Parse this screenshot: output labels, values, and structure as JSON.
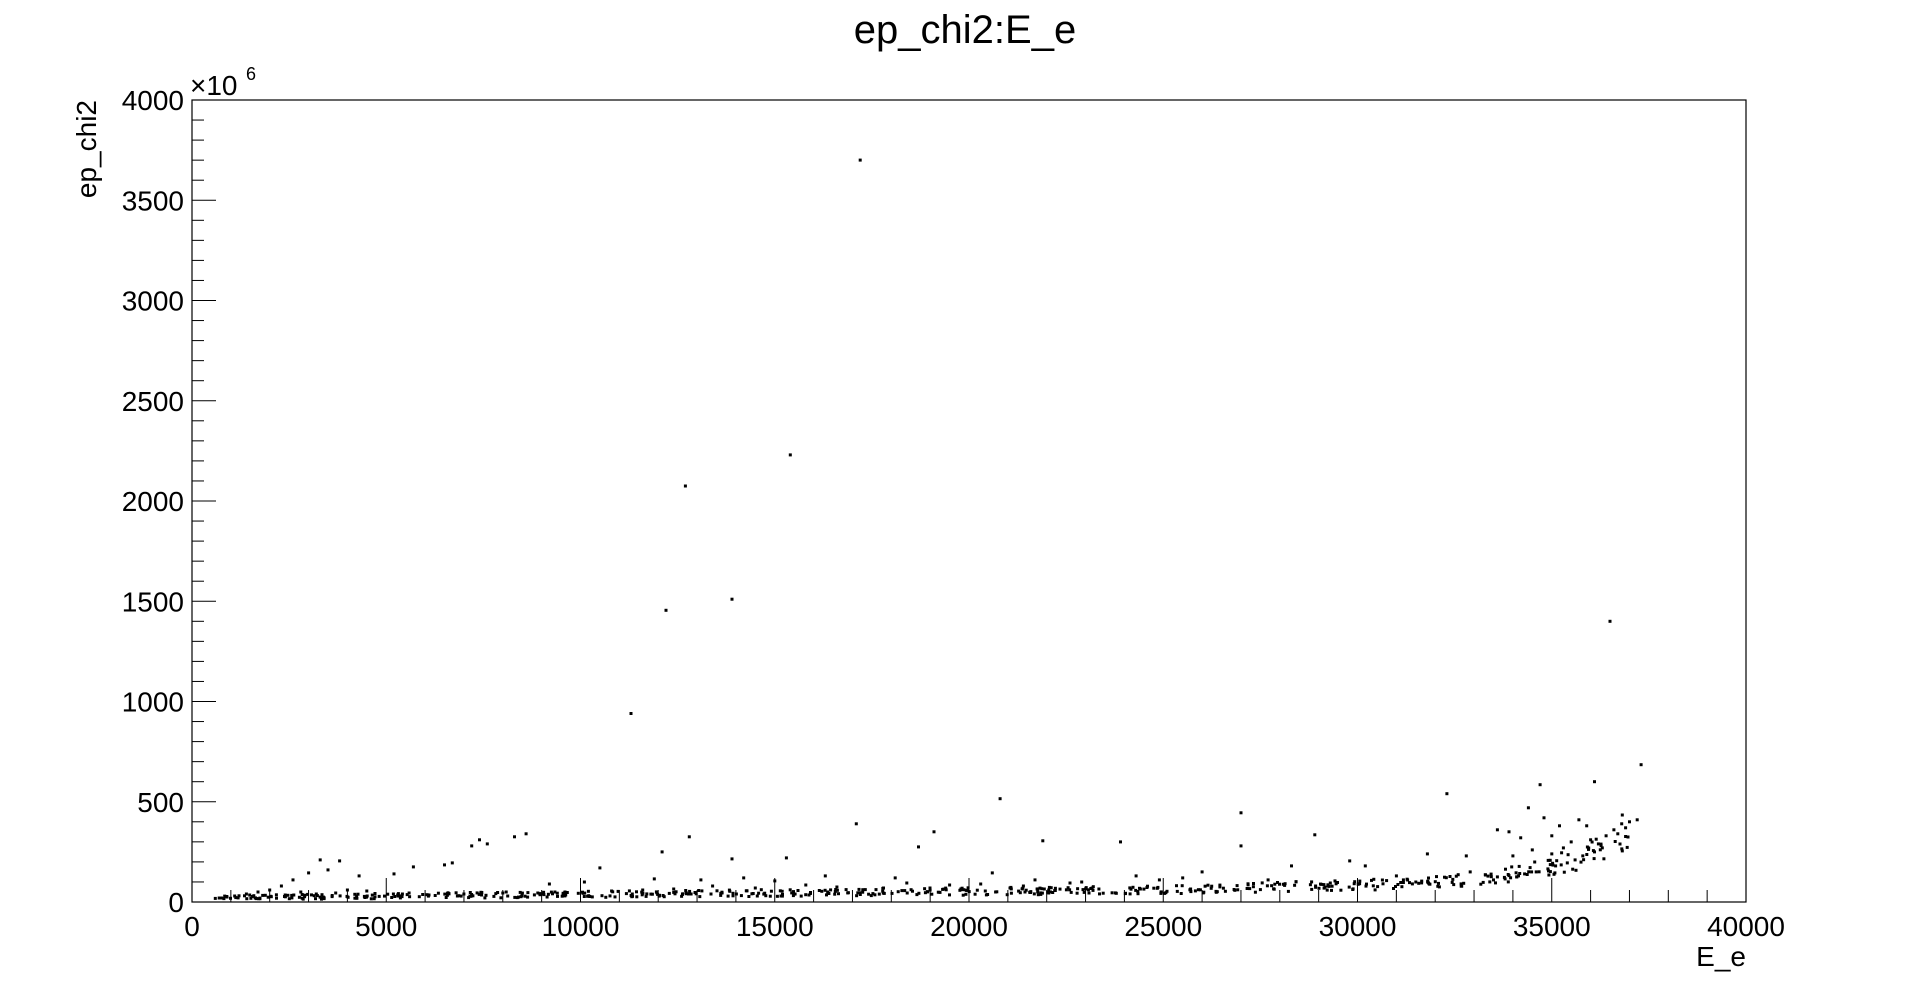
{
  "chart_data": {
    "type": "scatter",
    "title": "ep_chi2:E_e",
    "xlabel": "E_e",
    "ylabel": "ep_chi2",
    "y_multiplier": {
      "base": "×10",
      "exponent": "6"
    },
    "xlim": [
      0,
      40000
    ],
    "ylim": [
      0,
      4000
    ],
    "x_ticks": [
      0,
      5000,
      10000,
      15000,
      20000,
      25000,
      30000,
      35000,
      40000
    ],
    "x_tick_labels": [
      "0",
      "5000",
      "10000",
      "15000",
      "20000",
      "25000",
      "30000",
      "35000",
      "40000"
    ],
    "y_ticks": [
      0,
      500,
      1000,
      1500,
      2000,
      2500,
      3000,
      3500,
      4000
    ],
    "y_tick_labels": [
      "0",
      "500",
      "1000",
      "1500",
      "2000",
      "2500",
      "3000",
      "3500",
      "4000"
    ],
    "grid": false,
    "legend": "none",
    "marker_color": "#000000",
    "points": [
      [
        17200,
        3700
      ],
      [
        15400,
        2230
      ],
      [
        12700,
        2075
      ],
      [
        13900,
        1510
      ],
      [
        12200,
        1455
      ],
      [
        11300,
        940
      ],
      [
        36500,
        1400
      ],
      [
        37300,
        685
      ],
      [
        32300,
        540
      ],
      [
        34700,
        585
      ],
      [
        36100,
        600
      ],
      [
        20800,
        515
      ],
      [
        27000,
        445
      ],
      [
        17100,
        390
      ],
      [
        19100,
        350
      ],
      [
        28900,
        335
      ],
      [
        21900,
        305
      ],
      [
        12800,
        325
      ],
      [
        8600,
        340
      ],
      [
        8300,
        325
      ],
      [
        7400,
        310
      ],
      [
        7600,
        290
      ],
      [
        7200,
        280
      ],
      [
        23900,
        300
      ],
      [
        27000,
        280
      ],
      [
        18700,
        275
      ],
      [
        12100,
        250
      ],
      [
        31800,
        240
      ],
      [
        13900,
        215
      ],
      [
        15300,
        220
      ],
      [
        3300,
        210
      ],
      [
        3800,
        205
      ],
      [
        10500,
        170
      ],
      [
        32800,
        230
      ],
      [
        29800,
        205
      ],
      [
        6500,
        185
      ],
      [
        6700,
        195
      ],
      [
        5700,
        175
      ],
      [
        5200,
        140
      ],
      [
        4300,
        130
      ],
      [
        3500,
        160
      ],
      [
        3000,
        145
      ],
      [
        2600,
        110
      ],
      [
        2300,
        80
      ],
      [
        2000,
        60
      ],
      [
        1700,
        50
      ],
      [
        1400,
        40
      ],
      [
        1100,
        30
      ],
      [
        900,
        25
      ],
      [
        700,
        20
      ],
      [
        600,
        18
      ],
      [
        33600,
        360
      ],
      [
        33900,
        350
      ],
      [
        34200,
        320
      ],
      [
        34400,
        470
      ],
      [
        34800,
        420
      ],
      [
        35000,
        330
      ],
      [
        35200,
        380
      ],
      [
        35500,
        300
      ],
      [
        35700,
        410
      ],
      [
        35900,
        380
      ],
      [
        36000,
        310
      ],
      [
        36200,
        290
      ],
      [
        36400,
        330
      ],
      [
        36600,
        360
      ],
      [
        36800,
        390
      ],
      [
        36900,
        370
      ],
      [
        37000,
        400
      ],
      [
        37200,
        410
      ],
      [
        36700,
        340
      ],
      [
        36300,
        270
      ],
      [
        36100,
        250
      ],
      [
        35800,
        230
      ],
      [
        35600,
        210
      ],
      [
        35400,
        195
      ],
      [
        35100,
        180
      ],
      [
        34900,
        165
      ],
      [
        34600,
        150
      ],
      [
        34300,
        140
      ],
      [
        34100,
        125
      ],
      [
        33800,
        115
      ],
      [
        33500,
        110
      ],
      [
        34000,
        230
      ],
      [
        34500,
        260
      ],
      [
        35300,
        270
      ],
      [
        35000,
        240
      ],
      [
        26000,
        150
      ],
      [
        25500,
        120
      ],
      [
        24900,
        110
      ],
      [
        28300,
        180
      ],
      [
        30200,
        180
      ],
      [
        31000,
        130
      ],
      [
        22600,
        95
      ],
      [
        21700,
        110
      ],
      [
        21400,
        80
      ],
      [
        20300,
        90
      ],
      [
        19500,
        85
      ],
      [
        18400,
        95
      ],
      [
        17800,
        70
      ],
      [
        16600,
        75
      ],
      [
        15800,
        85
      ],
      [
        14500,
        70
      ],
      [
        13400,
        80
      ],
      [
        12400,
        65
      ],
      [
        11600,
        60
      ],
      [
        10800,
        55
      ],
      [
        9600,
        50
      ],
      [
        8900,
        45
      ],
      [
        8000,
        45
      ],
      [
        7000,
        40
      ],
      [
        6100,
        35
      ],
      [
        5300,
        30
      ],
      [
        4500,
        55
      ],
      [
        4000,
        60
      ],
      [
        3700,
        45
      ],
      [
        3200,
        40
      ],
      [
        2800,
        50
      ],
      [
        2400,
        35
      ],
      [
        16300,
        130
      ],
      [
        18100,
        120
      ],
      [
        20600,
        145
      ],
      [
        22900,
        100
      ],
      [
        24300,
        130
      ],
      [
        27700,
        110
      ],
      [
        29300,
        95
      ],
      [
        31500,
        100
      ],
      [
        32900,
        150
      ],
      [
        9200,
        90
      ],
      [
        10100,
        100
      ],
      [
        11900,
        115
      ],
      [
        14200,
        120
      ],
      [
        15000,
        105
      ],
      [
        13100,
        110
      ]
    ],
    "dense_band": [
      [
        600,
        20
      ],
      [
        2000,
        25
      ],
      [
        4000,
        28
      ],
      [
        6000,
        32
      ],
      [
        8000,
        35
      ],
      [
        10000,
        38
      ],
      [
        12000,
        41
      ],
      [
        14000,
        44
      ],
      [
        16000,
        47
      ],
      [
        18000,
        50
      ],
      [
        20000,
        53
      ],
      [
        22000,
        56
      ],
      [
        24000,
        60
      ],
      [
        26000,
        66
      ],
      [
        28000,
        75
      ],
      [
        30000,
        85
      ],
      [
        32000,
        100
      ],
      [
        33000,
        110
      ],
      [
        34000,
        140
      ],
      [
        35000,
        180
      ],
      [
        36000,
        240
      ],
      [
        36500,
        290
      ],
      [
        37000,
        380
      ]
    ]
  }
}
